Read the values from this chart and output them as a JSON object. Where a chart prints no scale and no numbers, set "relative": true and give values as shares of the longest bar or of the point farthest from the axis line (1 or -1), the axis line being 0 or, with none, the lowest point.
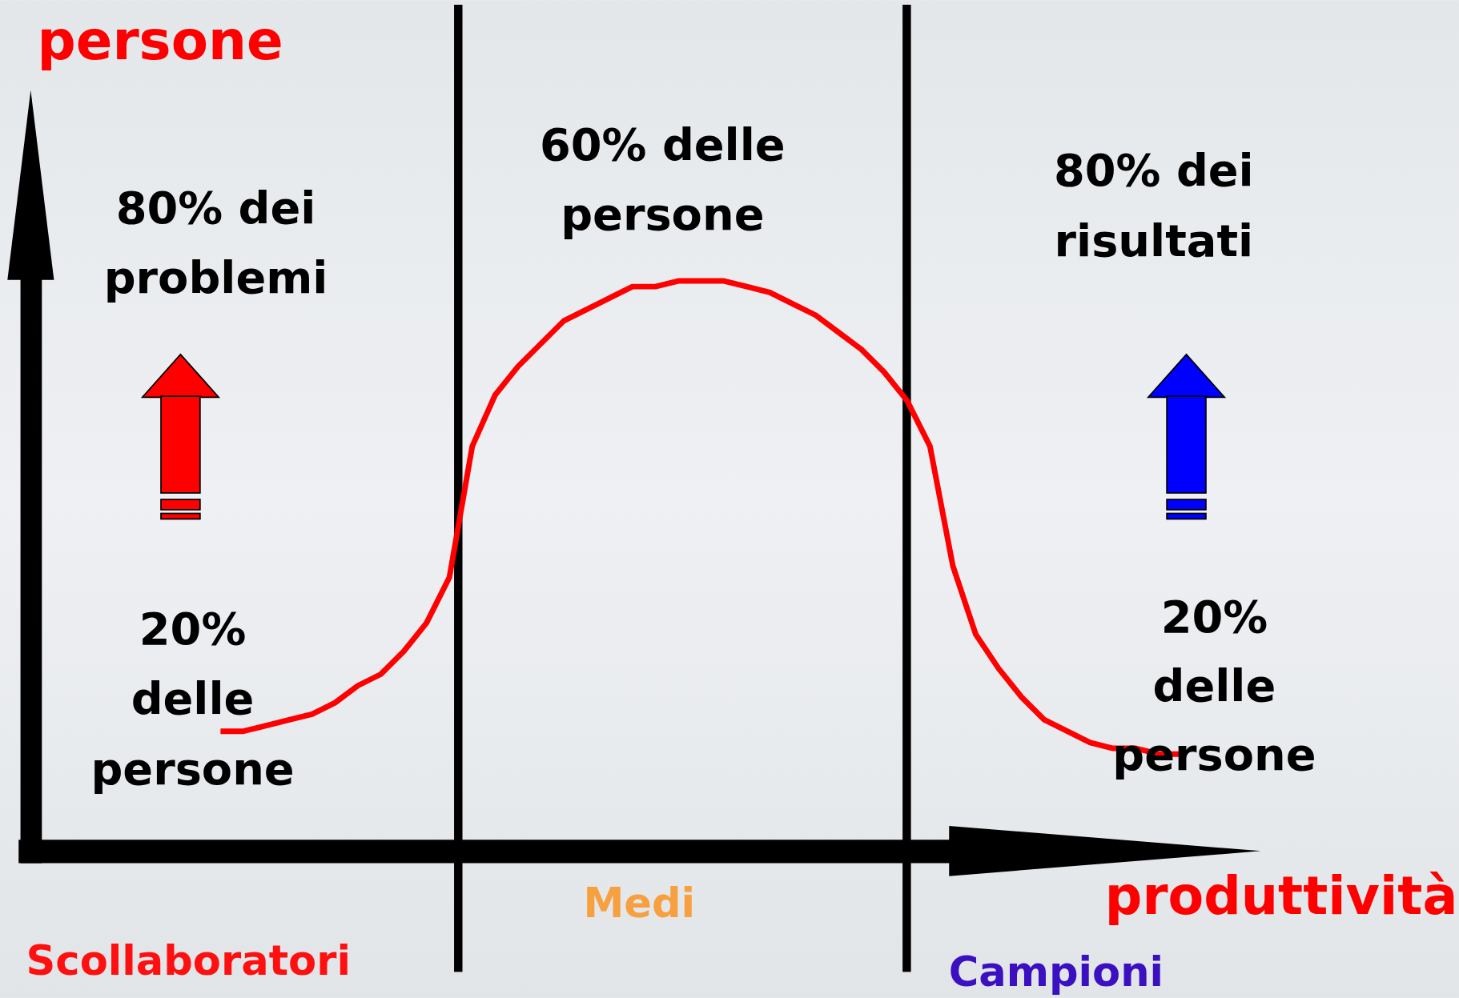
{
  "chart_data": {
    "type": "line",
    "relative": true,
    "xlabel": "produttività",
    "ylabel": "persone",
    "categories": [
      null,
      null,
      null,
      null,
      null,
      null,
      null,
      null,
      null,
      null,
      null,
      null,
      null,
      null,
      null,
      null,
      null,
      null,
      null,
      null,
      null,
      null,
      null,
      null,
      null,
      null,
      null,
      null,
      null,
      null,
      null,
      null,
      null,
      null,
      null,
      null,
      null,
      null,
      null,
      null,
      null,
      null,
      null
    ],
    "series": [
      {
        "color": "#ff0000",
        "values": [
          0.21,
          0.21,
          0.22,
          0.23,
          0.24,
          0.26,
          0.29,
          0.31,
          0.35,
          0.4,
          0.48,
          0.71,
          0.8,
          0.85,
          0.89,
          0.93,
          0.95,
          0.97,
          0.99,
          0.99,
          1,
          1,
          1,
          0.99,
          0.98,
          0.96,
          0.94,
          0.91,
          0.88,
          0.84,
          0.79,
          0.71,
          0.5,
          0.38,
          0.32,
          0.27,
          0.23,
          0.21,
          0.19,
          0.18,
          0.18,
          0.17,
          0.17
        ]
      }
    ],
    "annotations": [
      "80% dei\nproblemi",
      "20%\ndelle\npersone",
      "60% delle\npersone",
      "80% dei\nrisultati",
      "20%\ndelle\npersone",
      "Scollaboratori",
      "Medi",
      "Campioni"
    ]
  }
}
